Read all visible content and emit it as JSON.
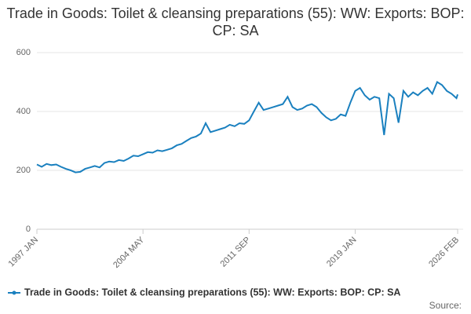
{
  "chart_data": {
    "type": "line",
    "title": "Trade in Goods: Toilet & cleansing preparations (55): WW: Exports: BOP: CP: SA",
    "source": "Source:",
    "x": [
      "1997-01",
      "1997-05",
      "1997-09",
      "1998-01",
      "1998-05",
      "1998-09",
      "1999-01",
      "1999-05",
      "1999-09",
      "2000-01",
      "2000-05",
      "2000-09",
      "2001-01",
      "2001-05",
      "2001-09",
      "2002-01",
      "2002-05",
      "2002-09",
      "2003-01",
      "2003-05",
      "2003-09",
      "2004-01",
      "2004-05",
      "2004-09",
      "2005-01",
      "2005-05",
      "2005-09",
      "2006-01",
      "2006-05",
      "2006-09",
      "2007-01",
      "2007-05",
      "2007-09",
      "2008-01",
      "2008-05",
      "2008-09",
      "2009-01",
      "2009-05",
      "2009-09",
      "2010-01",
      "2010-05",
      "2010-09",
      "2011-01",
      "2011-05",
      "2011-09",
      "2012-01",
      "2012-05",
      "2012-09",
      "2013-01",
      "2013-05",
      "2013-09",
      "2014-01",
      "2014-05",
      "2014-09",
      "2015-01",
      "2015-05",
      "2015-09",
      "2016-01",
      "2016-05",
      "2016-09",
      "2017-01",
      "2017-05",
      "2017-09",
      "2018-01",
      "2018-05",
      "2018-09",
      "2019-01",
      "2019-05",
      "2019-09",
      "2020-01",
      "2020-05",
      "2020-09",
      "2021-01",
      "2021-05",
      "2021-09",
      "2022-01",
      "2022-05",
      "2022-09",
      "2023-01",
      "2023-05",
      "2023-09",
      "2024-01",
      "2024-05",
      "2024-09",
      "2025-01",
      "2025-05",
      "2025-09",
      "2026-01",
      "2026-02"
    ],
    "series": [
      {
        "name": "Trade in Goods: Toilet & cleansing preparations (55): WW: Exports: BOP: CP: SA",
        "color": "#1a80bf",
        "values": [
          220,
          212,
          222,
          218,
          220,
          212,
          205,
          200,
          193,
          195,
          205,
          210,
          215,
          210,
          225,
          230,
          228,
          235,
          232,
          240,
          250,
          248,
          255,
          262,
          260,
          268,
          265,
          270,
          275,
          285,
          290,
          300,
          310,
          315,
          325,
          360,
          330,
          335,
          340,
          345,
          355,
          350,
          360,
          358,
          370,
          400,
          430,
          405,
          410,
          415,
          420,
          425,
          450,
          415,
          405,
          410,
          420,
          425,
          415,
          395,
          380,
          370,
          375,
          390,
          385,
          430,
          470,
          480,
          455,
          440,
          450,
          445,
          320,
          460,
          445,
          362,
          470,
          450,
          465,
          455,
          470,
          480,
          460,
          500,
          490,
          470,
          460,
          445,
          458
        ]
      }
    ],
    "xlim": [
      "1997-01",
      "2026-02"
    ],
    "xticks": [
      {
        "value": "1997-01",
        "label": "1997 JAN"
      },
      {
        "value": "2004-05",
        "label": "2004 MAY"
      },
      {
        "value": "2011-09",
        "label": "2011 SEP"
      },
      {
        "value": "2019-01",
        "label": "2019 JAN"
      },
      {
        "value": "2026-02",
        "label": "2026 FEB"
      }
    ],
    "ylim": [
      0,
      600
    ],
    "yticks": [
      0,
      200,
      400,
      600
    ],
    "grid": true
  }
}
